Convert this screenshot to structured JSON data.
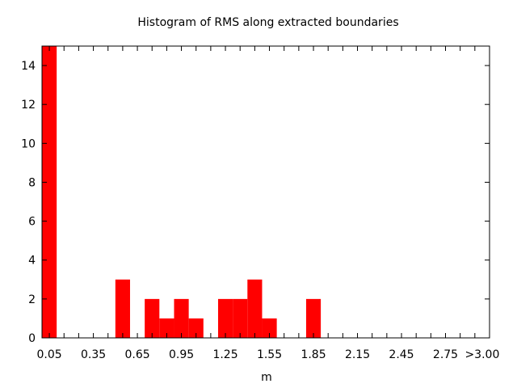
{
  "chart_data": {
    "type": "bar",
    "title": "Histogram of RMS along extracted boundaries",
    "xlabel": "m",
    "ylabel": "",
    "bin_width": 0.1,
    "x_tick_labels": [
      "0.05",
      "0.35",
      "0.65",
      "0.95",
      "1.25",
      "1.55",
      "1.85",
      "2.15",
      "2.45",
      "2.75",
      ">3.00"
    ],
    "x_tick_values": [
      0.05,
      0.35,
      0.65,
      0.95,
      1.25,
      1.55,
      1.85,
      2.15,
      2.45,
      2.75,
      3.0
    ],
    "x_minor_step": 0.1,
    "xlim": [
      0.0,
      3.05
    ],
    "y_tick_labels": [
      "0",
      "2",
      "4",
      "6",
      "8",
      "10",
      "12",
      "14"
    ],
    "y_tick_values": [
      0,
      2,
      4,
      6,
      8,
      10,
      12,
      14
    ],
    "ylim": [
      0,
      15
    ],
    "grid": false,
    "legend": "none",
    "colors": {
      "bar": "#ff0000",
      "axis": "#000000"
    },
    "bins": [
      {
        "x": 0.05,
        "count": 15
      },
      {
        "x": 0.55,
        "count": 3
      },
      {
        "x": 0.75,
        "count": 2
      },
      {
        "x": 0.85,
        "count": 1
      },
      {
        "x": 0.95,
        "count": 2
      },
      {
        "x": 1.05,
        "count": 1
      },
      {
        "x": 1.25,
        "count": 2
      },
      {
        "x": 1.35,
        "count": 2
      },
      {
        "x": 1.45,
        "count": 3
      },
      {
        "x": 1.55,
        "count": 1
      },
      {
        "x": 1.85,
        "count": 2
      }
    ]
  }
}
